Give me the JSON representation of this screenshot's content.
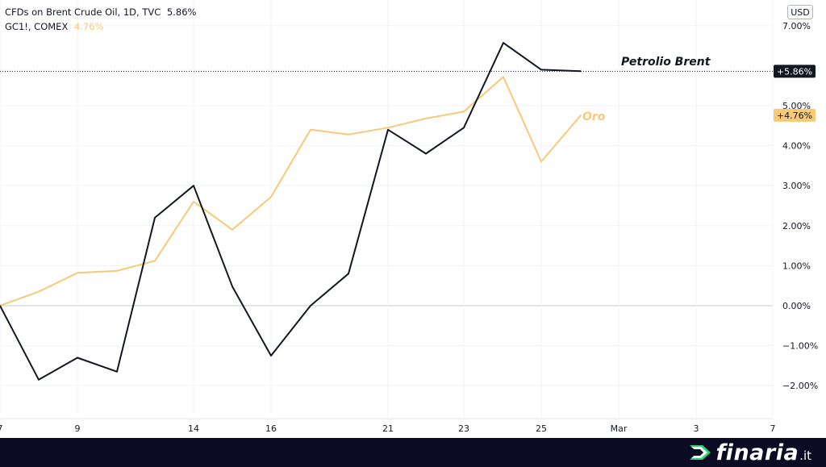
{
  "legend": {
    "brent": {
      "label": "CFDs on Brent Crude Oil, 1D, TVC",
      "value": "5.86%",
      "color": "#131722"
    },
    "gold": {
      "label": "GC1!, COMEX",
      "value": "4.76%",
      "color": "#f7c978"
    }
  },
  "currency": "USD",
  "brand": {
    "name": "finaria",
    "tld": ".it"
  },
  "chart_data": {
    "type": "line",
    "x_tick_labels": [
      "7",
      "9",
      "14",
      "16",
      "21",
      "23",
      "25",
      "Mar",
      "3",
      "7"
    ],
    "y_tick_labels": [
      "7.00%",
      "5.00%",
      "4.00%",
      "3.00%",
      "2.00%",
      "1.00%",
      "0.00%",
      "−1.00%",
      "−2.00%"
    ],
    "ylim": [
      -2.6,
      7.5
    ],
    "grid": true,
    "x_dates": [
      "2022-02-07",
      "2022-02-08",
      "2022-02-09",
      "2022-02-10",
      "2022-02-11",
      "2022-02-14",
      "2022-02-15",
      "2022-02-16",
      "2022-02-17",
      "2022-02-18",
      "2022-02-21",
      "2022-02-22",
      "2022-02-23",
      "2022-02-24",
      "2022-02-25",
      "2022-02-28"
    ],
    "series": [
      {
        "name": "CFDs on Brent Crude Oil, 1D, TVC",
        "color": "#131722",
        "values": [
          0.0,
          -1.85,
          -1.3,
          -1.65,
          2.2,
          3.0,
          0.48,
          -1.25,
          0.0,
          0.8,
          4.4,
          3.8,
          4.45,
          6.57,
          5.9,
          5.86
        ]
      },
      {
        "name": "GC1!, COMEX",
        "color": "#f7c978",
        "values": [
          0.0,
          0.35,
          0.82,
          0.87,
          1.12,
          2.6,
          1.9,
          2.72,
          4.4,
          4.28,
          4.45,
          4.68,
          4.85,
          5.72,
          3.6,
          4.76
        ]
      }
    ],
    "annotations": [
      {
        "text": "Petrolio Brent",
        "color": "#131722",
        "series": 0
      },
      {
        "text": "Oro",
        "color": "#f7c978",
        "series": 1
      }
    ],
    "price_labels": [
      {
        "text": "+5.86%",
        "value": 5.86,
        "bg": "#131722",
        "fg": "#ffffff"
      },
      {
        "text": "+4.76%",
        "value": 4.76,
        "bg": "#f7c978",
        "fg": "#131722"
      }
    ]
  }
}
